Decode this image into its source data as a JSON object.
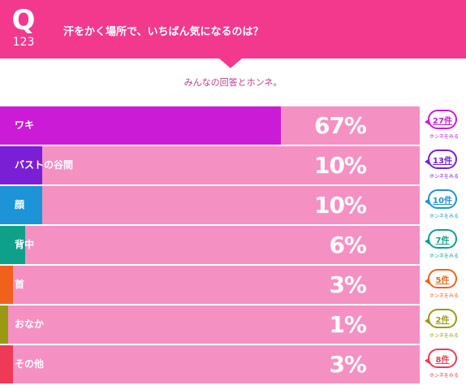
{
  "header": {
    "q_letter": "Q",
    "q_number": "123",
    "question": "汗をかく場所で、いちばん気になるのは？",
    "color": "#f2398e"
  },
  "subtitle": "みんなの回答とホンネ。",
  "track_color": "#f590c3",
  "rows": [
    {
      "label": "ワキ",
      "percent": "67%",
      "value": 67,
      "count": "27件",
      "link": "ホンネをみる",
      "color": "#cc1bd6"
    },
    {
      "label": "バストの谷間",
      "percent": "10%",
      "value": 10,
      "count": "13件",
      "link": "ホンネをみる",
      "color": "#7a1fd6"
    },
    {
      "label": "顔",
      "percent": "10%",
      "value": 10,
      "count": "10件",
      "link": "ホンネをみる",
      "color": "#1d93d8"
    },
    {
      "label": "背中",
      "percent": "6%",
      "value": 6,
      "count": "7件",
      "link": "ホンネをみる",
      "color": "#0fa08a"
    },
    {
      "label": "首",
      "percent": "3%",
      "value": 3,
      "count": "5件",
      "link": "ホンネをみる",
      "color": "#f0621b"
    },
    {
      "label": "おなか",
      "percent": "1%",
      "value": 1,
      "count": "2件",
      "link": "ホンネをみる",
      "color": "#9a9a12"
    },
    {
      "label": "その他",
      "percent": "3%",
      "value": 3,
      "count": "8件",
      "link": "ホンネをみる",
      "color": "#ee3a56"
    }
  ]
}
